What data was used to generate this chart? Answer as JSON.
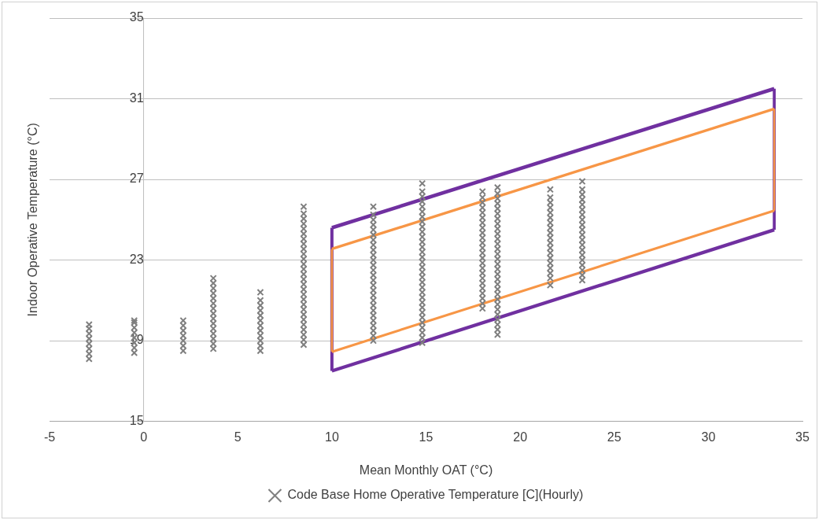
{
  "chart_data": {
    "type": "scatter",
    "xlabel": "Mean Monthly OAT (°C)",
    "ylabel": "Indoor Operative Temperature (°C)",
    "xlim": [
      -5,
      35
    ],
    "xticks": [
      -5,
      0,
      5,
      10,
      15,
      20,
      25,
      30,
      35
    ],
    "ylim": [
      15,
      35
    ],
    "yticks": [
      15,
      19,
      23,
      27,
      31,
      35
    ],
    "grid": "y",
    "legend": "bottom",
    "marker": "cross",
    "series": [
      {
        "name": "Code Base Home Operative Temperature [C](Hourly)",
        "color": "#7f7f7f",
        "x": [
          -2.9,
          -2.9,
          -2.9,
          -2.9,
          -2.9,
          -2.9,
          -2.9,
          -2.9,
          -0.5,
          -0.5,
          -0.5,
          -0.5,
          -0.5,
          -0.5,
          -0.5,
          -0.5,
          2.1,
          2.1,
          2.1,
          2.1,
          2.1,
          2.1,
          2.1,
          3.7,
          3.7,
          3.7,
          3.7,
          3.7,
          3.7,
          3.7,
          3.7,
          3.7,
          3.7,
          3.7,
          3.7,
          3.7,
          3.7,
          3.7,
          6.2,
          6.2,
          6.2,
          6.2,
          6.2,
          6.2,
          6.2,
          6.2,
          6.2,
          6.2,
          6.2,
          6.2,
          8.5,
          8.5,
          8.5,
          8.5,
          8.5,
          8.5,
          8.5,
          8.5,
          8.5,
          8.5,
          8.5,
          8.5,
          8.5,
          8.5,
          8.5,
          8.5,
          8.5,
          8.5,
          8.5,
          8.5,
          8.5,
          8.5,
          8.5,
          8.5,
          8.5,
          8.5,
          8.5,
          8.5,
          12.2,
          12.2,
          12.2,
          12.2,
          12.2,
          12.2,
          12.2,
          12.2,
          12.2,
          12.2,
          12.2,
          12.2,
          12.2,
          12.2,
          12.2,
          12.2,
          12.2,
          12.2,
          12.2,
          12.2,
          12.2,
          12.2,
          12.2,
          12.2,
          12.2,
          12.2,
          12.2,
          14.8,
          14.8,
          14.8,
          14.8,
          14.8,
          14.8,
          14.8,
          14.8,
          14.8,
          14.8,
          14.8,
          14.8,
          14.8,
          14.8,
          14.8,
          14.8,
          14.8,
          14.8,
          14.8,
          14.8,
          14.8,
          14.8,
          14.8,
          14.8,
          14.8,
          14.8,
          14.8,
          14.8,
          14.8,
          14.8,
          14.8,
          14.8,
          18.0,
          18.0,
          18.0,
          18.0,
          18.0,
          18.0,
          18.0,
          18.0,
          18.0,
          18.0,
          18.0,
          18.0,
          18.0,
          18.0,
          18.0,
          18.0,
          18.0,
          18.0,
          18.0,
          18.0,
          18.0,
          18.0,
          18.0,
          18.0,
          18.8,
          18.8,
          18.8,
          18.8,
          18.8,
          18.8,
          18.8,
          18.8,
          18.8,
          18.8,
          18.8,
          18.8,
          18.8,
          18.8,
          18.8,
          18.8,
          18.8,
          18.8,
          18.8,
          18.8,
          18.8,
          18.8,
          18.8,
          18.8,
          18.8,
          18.8,
          18.8,
          18.8,
          18.8,
          18.8,
          21.6,
          21.6,
          21.6,
          21.6,
          21.6,
          21.6,
          21.6,
          21.6,
          21.6,
          21.6,
          21.6,
          21.6,
          21.6,
          21.6,
          21.6,
          21.6,
          21.6,
          21.6,
          21.6,
          23.3,
          23.3,
          23.3,
          23.3,
          23.3,
          23.3,
          23.3,
          23.3,
          23.3,
          23.3,
          23.3,
          23.3,
          23.3,
          23.3,
          23.3,
          23.3,
          23.3,
          23.3,
          23.3,
          23.3
        ],
        "values": [
          18.1,
          18.35,
          18.6,
          18.85,
          19.1,
          19.35,
          19.6,
          19.8,
          18.4,
          18.65,
          18.9,
          19.15,
          19.4,
          19.65,
          19.9,
          20.0,
          18.5,
          18.75,
          19.0,
          19.25,
          19.5,
          19.75,
          20.0,
          18.6,
          18.85,
          19.1,
          19.35,
          19.6,
          19.85,
          20.1,
          20.35,
          20.6,
          20.85,
          21.1,
          21.35,
          21.6,
          21.85,
          22.1,
          18.5,
          18.75,
          19.0,
          19.25,
          19.5,
          19.75,
          20.0,
          20.25,
          20.5,
          20.75,
          21.0,
          21.4,
          18.8,
          19.05,
          19.3,
          19.55,
          19.8,
          20.05,
          20.3,
          20.55,
          20.8,
          21.05,
          21.3,
          21.55,
          21.8,
          22.05,
          22.3,
          22.55,
          22.8,
          23.05,
          23.3,
          23.55,
          23.8,
          24.05,
          24.3,
          24.55,
          24.8,
          25.05,
          25.3,
          25.65,
          19.0,
          19.25,
          19.5,
          19.75,
          20.0,
          20.25,
          20.5,
          20.75,
          21.0,
          21.25,
          21.5,
          21.75,
          22.0,
          22.25,
          22.5,
          22.75,
          23.0,
          23.25,
          23.5,
          23.75,
          24.0,
          24.25,
          24.5,
          24.75,
          25.0,
          25.25,
          25.65,
          18.9,
          19.15,
          19.4,
          19.65,
          19.9,
          20.15,
          20.4,
          20.65,
          20.9,
          21.15,
          21.4,
          21.65,
          21.9,
          22.15,
          22.4,
          22.65,
          22.9,
          23.15,
          23.4,
          23.65,
          23.9,
          24.15,
          24.4,
          24.65,
          24.9,
          25.15,
          25.4,
          25.65,
          25.9,
          26.15,
          26.4,
          26.8,
          20.6,
          20.85,
          21.1,
          21.35,
          21.6,
          21.85,
          22.1,
          22.35,
          22.6,
          22.85,
          23.1,
          23.35,
          23.6,
          23.85,
          24.1,
          24.35,
          24.6,
          24.85,
          25.1,
          25.35,
          25.6,
          25.85,
          26.1,
          26.4,
          19.3,
          19.55,
          19.8,
          20.05,
          20.3,
          20.55,
          20.8,
          21.05,
          21.3,
          21.55,
          21.8,
          22.05,
          22.3,
          22.55,
          22.8,
          23.05,
          23.3,
          23.55,
          23.8,
          24.05,
          24.3,
          24.55,
          24.8,
          25.05,
          25.3,
          25.55,
          25.8,
          26.05,
          26.3,
          26.6,
          21.75,
          22.1,
          22.35,
          22.6,
          22.85,
          23.1,
          23.35,
          23.6,
          23.85,
          24.1,
          24.35,
          24.6,
          24.85,
          25.1,
          25.35,
          25.6,
          25.85,
          26.1,
          26.5,
          22.0,
          22.25,
          22.5,
          22.75,
          23.0,
          23.25,
          23.5,
          23.75,
          24.0,
          24.25,
          24.5,
          24.75,
          25.0,
          25.25,
          25.5,
          25.75,
          26.0,
          26.25,
          26.5,
          26.9
        ]
      },
      {
        "type": "line",
        "marker": "none",
        "color": "#7030a0",
        "x": [
          10,
          33.5
        ],
        "values": [
          24.6,
          31.5
        ]
      },
      {
        "type": "line",
        "marker": "none",
        "color": "#7030a0",
        "x": [
          10,
          33.5
        ],
        "values": [
          17.5,
          24.5
        ]
      },
      {
        "type": "line",
        "marker": "none",
        "color": "#7030a0",
        "x": [
          10,
          10
        ],
        "values": [
          17.5,
          24.6
        ]
      },
      {
        "type": "line",
        "marker": "none",
        "color": "#7030a0",
        "x": [
          33.5,
          33.5
        ],
        "values": [
          24.5,
          31.5
        ]
      },
      {
        "type": "line",
        "marker": "none",
        "color": "#f79646",
        "x": [
          10,
          33.5
        ],
        "values": [
          23.55,
          30.5
        ]
      },
      {
        "type": "line",
        "marker": "none",
        "color": "#f79646",
        "x": [
          10,
          33.5
        ],
        "values": [
          18.45,
          25.45
        ]
      },
      {
        "type": "line",
        "marker": "none",
        "color": "#f79646",
        "x": [
          10,
          10
        ],
        "values": [
          18.45,
          23.55
        ]
      },
      {
        "type": "line",
        "marker": "none",
        "color": "#f79646",
        "x": [
          33.5,
          33.5
        ],
        "values": [
          25.45,
          30.5
        ]
      }
    ]
  }
}
